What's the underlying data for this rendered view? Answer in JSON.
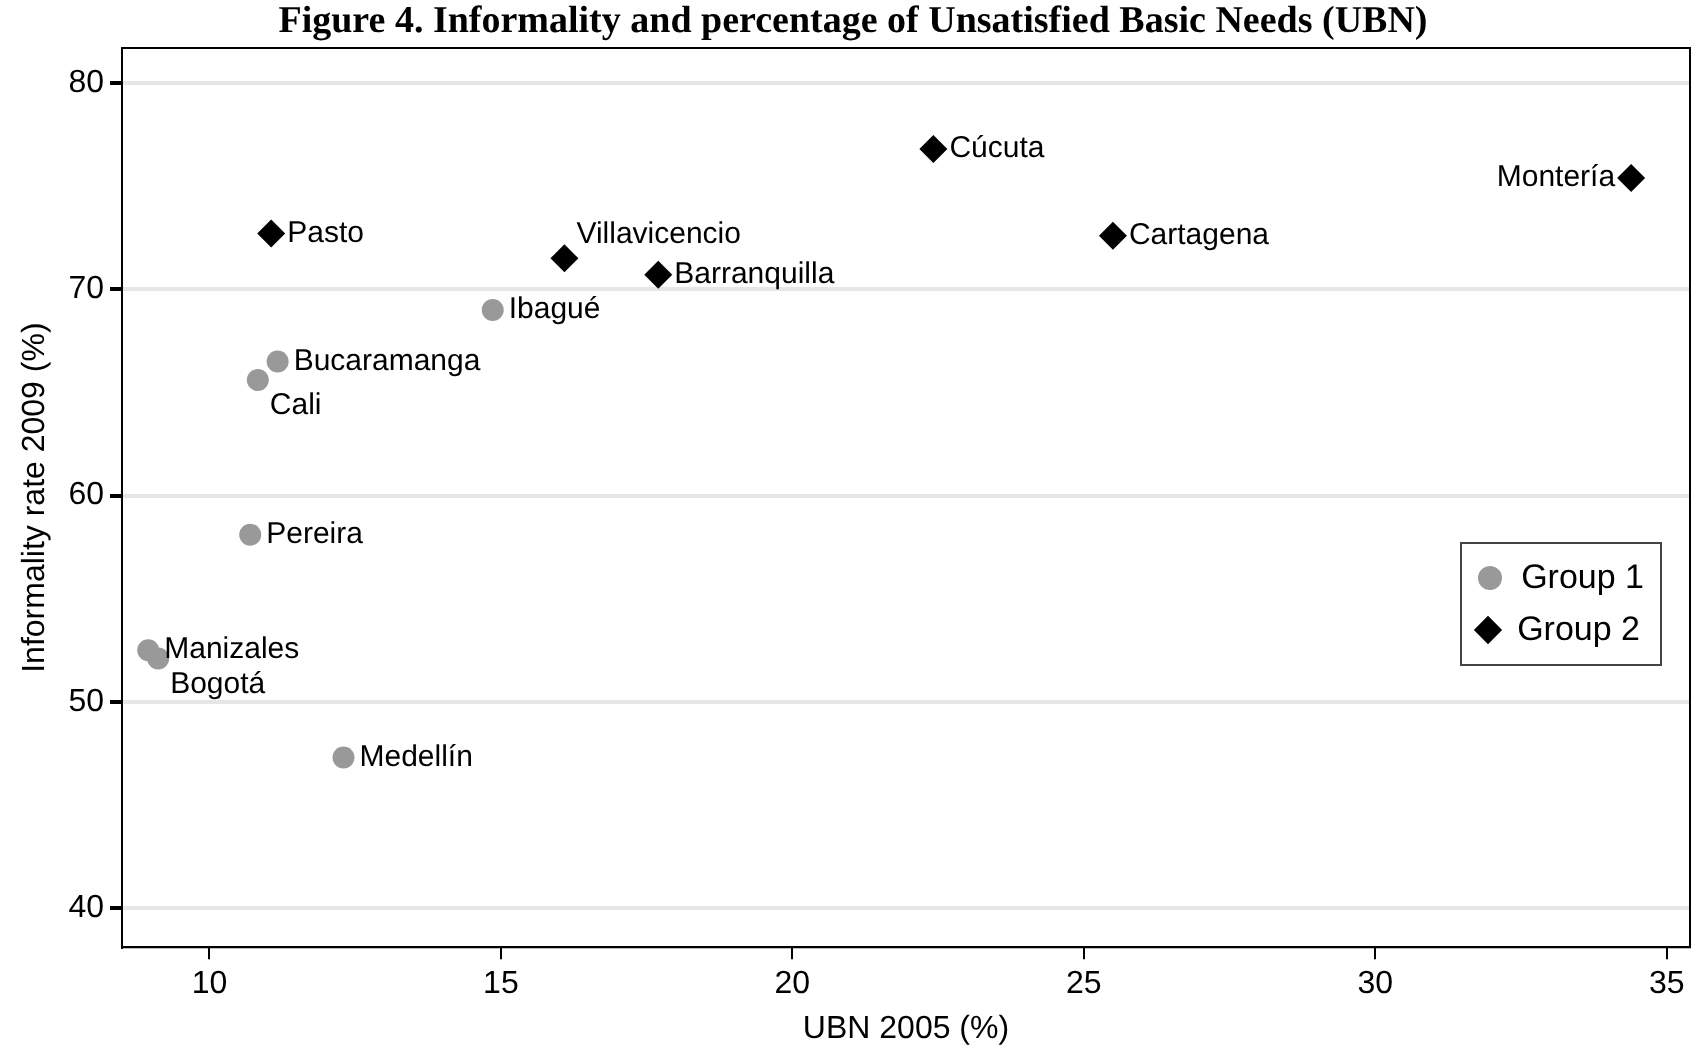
{
  "chart_data": {
    "type": "scatter",
    "title": "Figure 4. Informality and percentage of Unsatisfied Basic Needs (UBN)",
    "xlabel": "UBN 2005 (%)",
    "ylabel": "Informality rate 2009 (%)",
    "series": [
      {
        "name": "Group 1",
        "color": "#999999",
        "marker": "circle",
        "x": [
          14.86,
          11.17,
          10.83,
          10.7,
          8.95,
          9.12,
          12.3
        ],
        "values": [
          69.0,
          66.5,
          65.6,
          58.1,
          52.5,
          52.1,
          47.3
        ]
      },
      {
        "name": "Group 2",
        "color": "#000000",
        "marker": "diamond",
        "x": [
          11.06,
          16.09,
          17.7,
          22.42,
          25.5,
          34.39
        ],
        "values": [
          72.7,
          71.5,
          70.7,
          76.8,
          72.6,
          75.4
        ]
      }
    ],
    "annotations": [
      {
        "text": "Ibagué",
        "x": 14.86,
        "y": 69.0
      },
      {
        "text": "Bucaramanga",
        "x": 11.17,
        "y": 66.5
      },
      {
        "text": "Cali",
        "x": 10.83,
        "y": 65.6
      },
      {
        "text": "Pereira",
        "x": 10.7,
        "y": 58.1
      },
      {
        "text": "Manizales",
        "x": 8.95,
        "y": 52.5
      },
      {
        "text": "Bogotá",
        "x": 9.12,
        "y": 52.1
      },
      {
        "text": "Medellín",
        "x": 12.3,
        "y": 47.3
      },
      {
        "text": "Pasto",
        "x": 11.06,
        "y": 72.7
      },
      {
        "text": "Villavicencio",
        "x": 16.09,
        "y": 71.5
      },
      {
        "text": "Barranquilla",
        "x": 17.7,
        "y": 70.7
      },
      {
        "text": "Cúcuta",
        "x": 22.42,
        "y": 76.8
      },
      {
        "text": "Cartagena",
        "x": 25.5,
        "y": 72.6
      },
      {
        "text": "Montería",
        "x": 34.39,
        "y": 75.4
      }
    ],
    "xlim": [
      8.5,
      35.4
    ],
    "xticks": [
      10,
      15,
      20,
      25,
      30,
      35
    ],
    "ylim": [
      38.1,
      81.7
    ],
    "yticks": [
      40,
      50,
      60,
      70,
      80
    ],
    "grid": "y",
    "legend": "right"
  }
}
